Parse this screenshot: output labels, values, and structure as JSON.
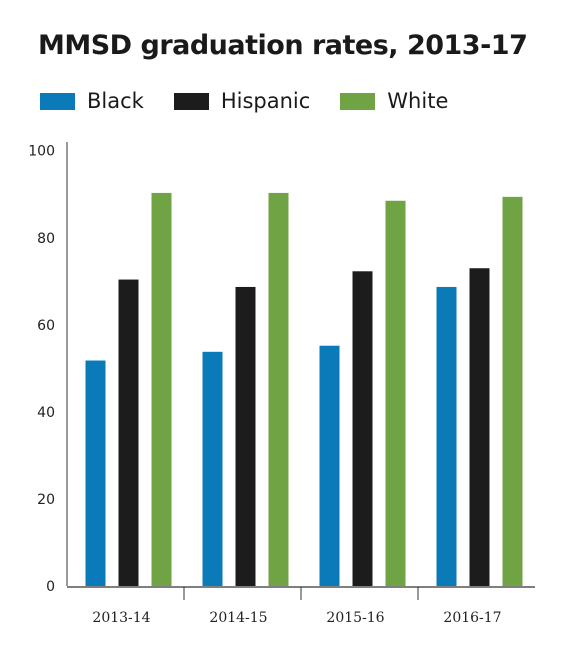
{
  "chart_data": {
    "type": "bar",
    "title": "MMSD graduation rates, 2013-17",
    "categories": [
      "2013-14",
      "2014-15",
      "2015-16",
      "2016-17"
    ],
    "series": [
      {
        "name": "Black",
        "color": "#0a7ab8",
        "values": [
          51.8,
          53.8,
          55.2,
          68.7
        ]
      },
      {
        "name": "Hispanic",
        "color": "#1c1c1c",
        "values": [
          70.4,
          68.7,
          72.3,
          73.0
        ]
      },
      {
        "name": "White",
        "color": "#6fa343",
        "values": [
          90.3,
          90.3,
          88.5,
          89.4
        ]
      }
    ],
    "ylim": [
      0,
      100
    ],
    "yticks": [
      0,
      20,
      40,
      60,
      80,
      100
    ],
    "xlabel": "",
    "ylabel": "",
    "legend_position": "top-left",
    "grid": false
  }
}
